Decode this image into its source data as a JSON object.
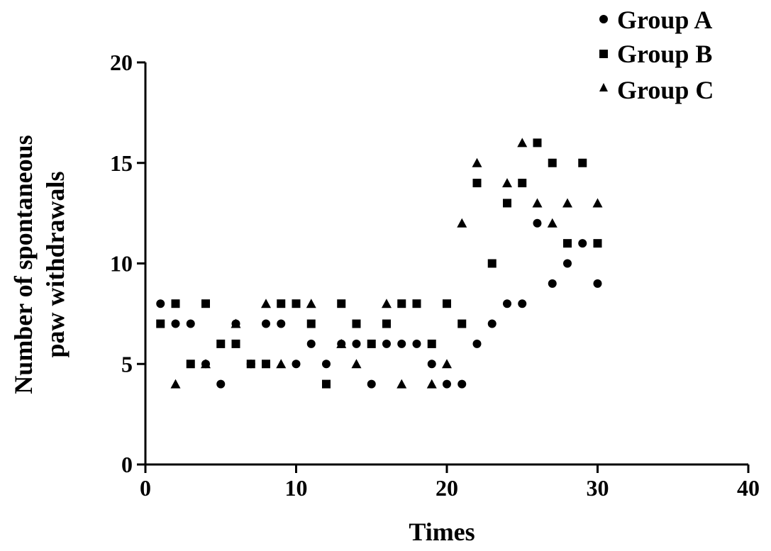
{
  "chart_data": {
    "type": "scatter",
    "title": "",
    "xlabel": "Times",
    "ylabel_lines": [
      "Number of spontaneous",
      "paw withdrawals"
    ],
    "xlim": [
      0,
      40
    ],
    "ylim": [
      0,
      20
    ],
    "x_ticks": [
      0,
      10,
      20,
      30,
      40
    ],
    "y_ticks": [
      0,
      5,
      10,
      15,
      20
    ],
    "legend_position": "top-right",
    "grid": false,
    "series": [
      {
        "name": "Group A",
        "marker": "circle",
        "x": [
          1,
          2,
          3,
          4,
          5,
          6,
          7,
          8,
          9,
          10,
          11,
          12,
          13,
          14,
          15,
          16,
          17,
          18,
          19,
          20,
          21,
          22,
          23,
          24,
          25,
          26,
          27,
          28,
          29,
          30
        ],
        "values": [
          8,
          7,
          7,
          5,
          4,
          7,
          5,
          7,
          7,
          5,
          6,
          5,
          6,
          6,
          4,
          6,
          6,
          6,
          5,
          4,
          4,
          6,
          7,
          8,
          8,
          12,
          9,
          10,
          11,
          9
        ]
      },
      {
        "name": "Group B",
        "marker": "square",
        "x": [
          1,
          2,
          3,
          4,
          5,
          6,
          7,
          8,
          9,
          10,
          11,
          12,
          13,
          14,
          15,
          16,
          17,
          18,
          19,
          20,
          21,
          22,
          23,
          24,
          25,
          26,
          27,
          28,
          29,
          30
        ],
        "values": [
          7,
          8,
          5,
          8,
          6,
          6,
          5,
          5,
          8,
          8,
          7,
          4,
          8,
          7,
          6,
          7,
          8,
          8,
          6,
          8,
          7,
          14,
          10,
          13,
          14,
          16,
          15,
          11,
          15,
          11
        ]
      },
      {
        "name": "Group C",
        "marker": "triangle",
        "x": [
          2,
          4,
          6,
          8,
          9,
          11,
          13,
          14,
          16,
          17,
          19,
          20,
          21,
          22,
          24,
          25,
          26,
          27,
          28,
          30
        ],
        "values": [
          4,
          5,
          7,
          8,
          5,
          8,
          6,
          5,
          8,
          4,
          4,
          5,
          12,
          15,
          14,
          16,
          13,
          12,
          13,
          13
        ]
      }
    ],
    "color": "#000000"
  }
}
